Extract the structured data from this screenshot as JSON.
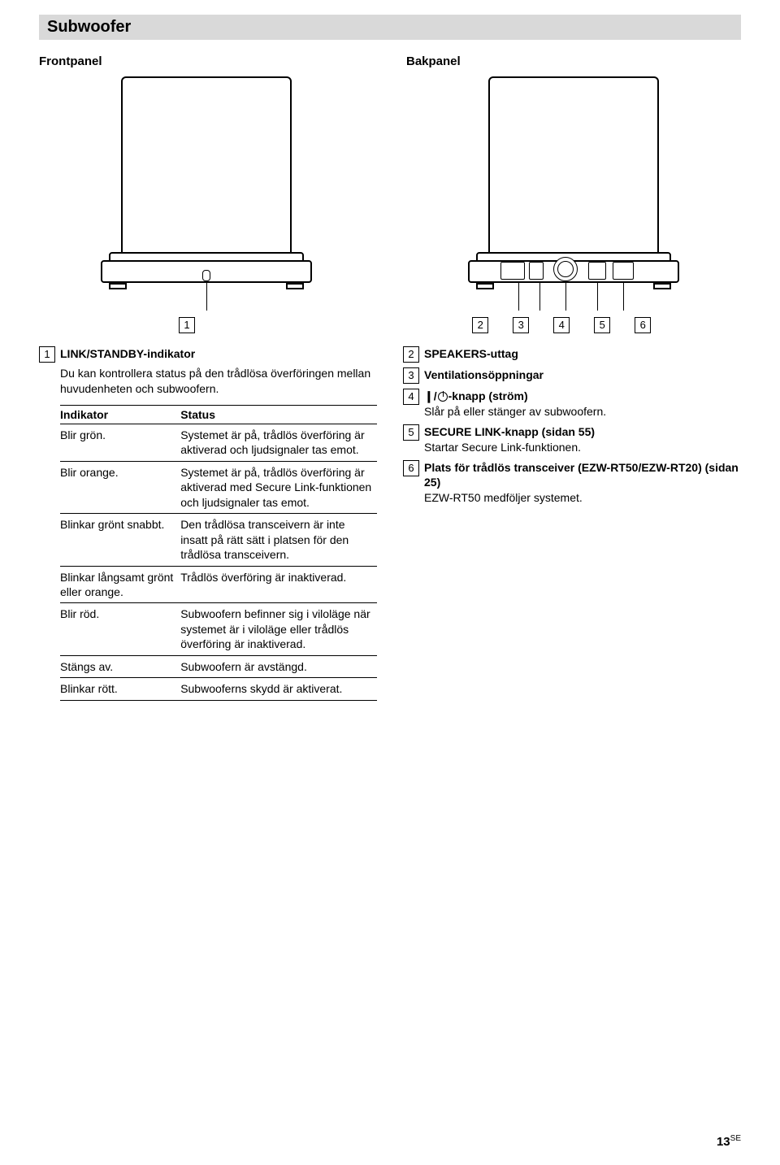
{
  "section_heading": "Subwoofer",
  "panels": {
    "front_label": "Frontpanel",
    "back_label": "Bakpanel"
  },
  "callout_nums": [
    "1",
    "2",
    "3",
    "4",
    "5",
    "6"
  ],
  "left": {
    "num": "1",
    "title": "LINK/STANDBY-indikator",
    "desc": "Du kan kontrollera status på den trådlösa överföringen mellan huvudenheten och subwoofern.",
    "table": {
      "col1": "Indikator",
      "col2": "Status",
      "rows": [
        {
          "ind": "Blir grön.",
          "st": "Systemet är på, trådlös överföring är aktiverad och ljudsignaler tas emot."
        },
        {
          "ind": "Blir orange.",
          "st": "Systemet är på, trådlös överföring är aktiverad med Secure Link-funktionen och ljudsignaler tas emot."
        },
        {
          "ind": "Blinkar grönt snabbt.",
          "st": "Den trådlösa transceivern är inte insatt på rätt sätt i platsen för den trådlösa transceivern."
        },
        {
          "ind": "Blinkar långsamt grönt eller orange.",
          "st": "Trådlös överföring är inaktiverad."
        },
        {
          "ind": "Blir röd.",
          "st": "Subwoofern befinner sig i viloläge när systemet är i viloläge eller trådlös överföring är inaktiverad."
        },
        {
          "ind": "Stängs av.",
          "st": "Subwoofern är avstängd."
        },
        {
          "ind": "Blinkar rött.",
          "st": "Subwooferns skydd är aktiverat."
        }
      ]
    }
  },
  "right": [
    {
      "num": "2",
      "title": "SPEAKERS-uttag",
      "sub": ""
    },
    {
      "num": "3",
      "title": "Ventilationsöppningar",
      "sub": ""
    },
    {
      "num": "4",
      "title_prefix": "❙/",
      "title_suffix": "-knapp (ström)",
      "sub": "Slår på eller stänger av subwoofern."
    },
    {
      "num": "5",
      "title": "SECURE LINK-knapp (sidan 55)",
      "sub": "Startar Secure Link-funktionen."
    },
    {
      "num": "6",
      "title": "Plats för trådlös transceiver (EZW-RT50/EZW-RT20) (sidan 25)",
      "sub": "EZW-RT50 medföljer systemet."
    }
  ],
  "page_number": "13",
  "page_suffix": "SE",
  "colors": {
    "banner_bg": "#d9d9d9",
    "text": "#000000",
    "bg": "#ffffff"
  }
}
